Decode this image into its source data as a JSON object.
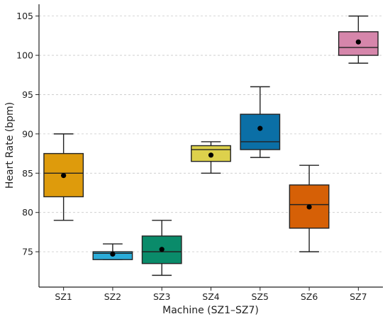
{
  "chart_data": {
    "type": "box",
    "title": "",
    "xlabel": "Machine (SZ1–SZ7)",
    "ylabel": "Heart Rate (bpm)",
    "ylim": [
      70.5,
      106.5
    ],
    "yticks": [
      75,
      80,
      85,
      90,
      95,
      100,
      105
    ],
    "grid": "horizontal-dashed",
    "categories": [
      "SZ1",
      "SZ2",
      "SZ3",
      "SZ4",
      "SZ5",
      "SZ6",
      "SZ7"
    ],
    "boxes": [
      {
        "category": "SZ1",
        "whisker_low": 79,
        "q1": 82,
        "median": 85,
        "q3": 87.5,
        "whisker_high": 90,
        "mean": 84.7,
        "color": "#DE9B0C"
      },
      {
        "category": "SZ2",
        "whisker_low": 74,
        "q1": 74,
        "median": 74.8,
        "q3": 75,
        "whisker_high": 76,
        "mean": 74.7,
        "color": "#2BACD8"
      },
      {
        "category": "SZ3",
        "whisker_low": 72,
        "q1": 73.5,
        "median": 75,
        "q3": 77,
        "whisker_high": 79,
        "mean": 75.3,
        "color": "#0A8B6A"
      },
      {
        "category": "SZ4",
        "whisker_low": 85,
        "q1": 86.5,
        "median": 88,
        "q3": 88.5,
        "whisker_high": 89,
        "mean": 87.3,
        "color": "#DDD14C"
      },
      {
        "category": "SZ5",
        "whisker_low": 87,
        "q1": 88,
        "median": 89,
        "q3": 92.5,
        "whisker_high": 96,
        "mean": 90.7,
        "color": "#0B6FA6"
      },
      {
        "category": "SZ6",
        "whisker_low": 75,
        "q1": 78,
        "median": 81,
        "q3": 83.5,
        "whisker_high": 86,
        "mean": 80.7,
        "color": "#D66006"
      },
      {
        "category": "SZ7",
        "whisker_low": 99,
        "q1": 100,
        "median": 101,
        "q3": 103,
        "whisker_high": 105,
        "mean": 101.7,
        "color": "#D686AB"
      }
    ]
  }
}
